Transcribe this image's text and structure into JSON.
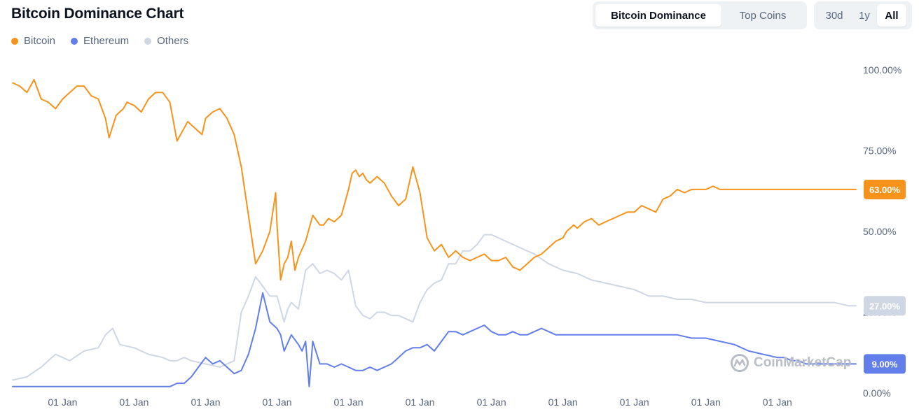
{
  "header": {
    "title": "Bitcoin Dominance Chart",
    "view_tabs": [
      "Bitcoin Dominance",
      "Top Coins"
    ],
    "active_view": "Bitcoin Dominance",
    "range_tabs": [
      "30d",
      "1y",
      "All"
    ],
    "active_range": "All"
  },
  "watermark": {
    "text": "CoinMarketCap",
    "icon": "coinmarketcap-logo-icon"
  },
  "chart_data": {
    "type": "line",
    "title": "Bitcoin Dominance Chart",
    "xlabel": "",
    "ylabel": "",
    "ylim": [
      0,
      100
    ],
    "y_ticks": [
      "100.00%",
      "75.00%",
      "50.00%",
      "25.00%",
      "0.00%"
    ],
    "x_tick_labels": [
      "01 Jan",
      "01 Jan",
      "01 Jan",
      "01 Jan",
      "01 Jan",
      "01 Jan",
      "01 Jan",
      "01 Jan",
      "01 Jan",
      "01 Jan",
      "01 Jan"
    ],
    "x_range": [
      2013.3,
      2025.1
    ],
    "x_ticks": [
      2014,
      2015,
      2016,
      2017,
      2018,
      2019,
      2020,
      2021,
      2022,
      2023,
      2024
    ],
    "grid": false,
    "legend_position": "top-left",
    "series": [
      {
        "name": "Bitcoin",
        "color": "#f7931a",
        "end_label": "63.00%",
        "x": [
          2013.3,
          2013.4,
          2013.5,
          2013.55,
          2013.6,
          2013.7,
          2013.8,
          2013.9,
          2014.0,
          2014.1,
          2014.2,
          2014.3,
          2014.4,
          2014.5,
          2014.6,
          2014.65,
          2014.75,
          2014.85,
          2014.9,
          2015.0,
          2015.1,
          2015.2,
          2015.3,
          2015.4,
          2015.5,
          2015.6,
          2015.7,
          2015.75,
          2015.85,
          2015.95,
          2016.0,
          2016.1,
          2016.2,
          2016.3,
          2016.4,
          2016.5,
          2016.6,
          2016.7,
          2016.8,
          2016.9,
          2016.98,
          2017.0,
          2017.05,
          2017.1,
          2017.15,
          2017.2,
          2017.25,
          2017.3,
          2017.4,
          2017.5,
          2017.6,
          2017.65,
          2017.72,
          2017.8,
          2017.9,
          2017.95,
          2018.0,
          2018.05,
          2018.1,
          2018.15,
          2018.2,
          2018.25,
          2018.3,
          2018.4,
          2018.5,
          2018.6,
          2018.7,
          2018.8,
          2018.9,
          2019.0,
          2019.1,
          2019.2,
          2019.3,
          2019.4,
          2019.5,
          2019.6,
          2019.7,
          2019.8,
          2019.9,
          2020.0,
          2020.1,
          2020.2,
          2020.3,
          2020.4,
          2020.5,
          2020.6,
          2020.7,
          2020.8,
          2020.9,
          2021.0,
          2021.05,
          2021.1,
          2021.15,
          2021.2,
          2021.3,
          2021.4,
          2021.5,
          2021.6,
          2021.7,
          2021.8,
          2021.9,
          2022.0,
          2022.1,
          2022.2,
          2022.3,
          2022.4,
          2022.5,
          2022.6,
          2022.7,
          2022.8,
          2022.9,
          2023.0,
          2023.1,
          2023.2,
          2023.3,
          2023.4,
          2023.5,
          2023.6,
          2023.7,
          2023.8,
          2023.9,
          2024.0,
          2024.1,
          2024.2,
          2024.3,
          2024.4,
          2024.5,
          2024.6,
          2024.7,
          2024.8,
          2024.9,
          2025.0,
          2025.1
        ],
        "values": [
          96,
          95,
          93,
          95,
          97,
          91,
          90,
          88,
          91,
          93,
          95,
          95,
          92,
          91,
          85,
          79,
          86,
          88,
          90,
          89,
          87,
          91,
          93,
          93,
          90,
          78,
          82,
          84,
          82,
          80,
          85,
          87,
          88,
          85,
          80,
          70,
          55,
          40,
          44,
          50,
          62,
          52,
          35,
          40,
          42,
          47,
          38,
          42,
          47,
          55,
          52,
          52,
          54,
          53,
          55,
          59,
          63,
          68,
          69,
          67,
          68,
          66,
          65,
          67,
          65,
          61,
          58,
          60,
          70,
          62,
          48,
          44,
          46,
          42,
          44,
          42,
          41,
          42,
          43,
          41,
          41,
          42,
          39,
          38,
          40,
          42,
          43,
          45,
          47,
          48,
          50,
          51,
          52,
          51,
          53,
          54,
          52,
          53,
          54,
          55,
          56,
          56,
          58,
          57,
          56,
          60,
          61,
          63,
          62,
          63,
          63,
          63,
          64,
          63,
          63,
          63,
          63,
          63,
          63,
          63,
          63,
          63,
          63,
          63,
          63,
          63,
          63,
          63,
          63,
          63,
          63,
          63,
          63
        ]
      },
      {
        "name": "Ethereum",
        "color": "#627eea",
        "end_label": "9.00%",
        "x": [
          2013.3,
          2015.5,
          2015.6,
          2015.7,
          2015.8,
          2015.9,
          2016.0,
          2016.1,
          2016.2,
          2016.3,
          2016.4,
          2016.5,
          2016.6,
          2016.7,
          2016.8,
          2016.9,
          2017.0,
          2017.05,
          2017.1,
          2017.2,
          2017.3,
          2017.35,
          2017.4,
          2017.45,
          2017.5,
          2017.6,
          2017.7,
          2017.8,
          2017.9,
          2018.0,
          2018.1,
          2018.2,
          2018.3,
          2018.4,
          2018.5,
          2018.6,
          2018.7,
          2018.8,
          2018.9,
          2019.0,
          2019.1,
          2019.2,
          2019.3,
          2019.4,
          2019.5,
          2019.6,
          2019.7,
          2019.8,
          2019.9,
          2020.0,
          2020.1,
          2020.2,
          2020.3,
          2020.4,
          2020.5,
          2020.6,
          2020.7,
          2020.8,
          2020.9,
          2021.0,
          2021.2,
          2021.4,
          2021.6,
          2021.8,
          2022.0,
          2022.2,
          2022.4,
          2022.6,
          2022.8,
          2023.0,
          2023.2,
          2023.4,
          2023.6,
          2023.8,
          2024.0,
          2024.1,
          2024.2,
          2024.3,
          2024.4,
          2024.5,
          2024.6,
          2024.7,
          2024.8,
          2024.9,
          2025.0,
          2025.1
        ],
        "values": [
          2,
          2,
          3,
          3,
          5,
          8,
          11,
          9,
          10,
          8,
          6,
          7,
          12,
          20,
          31,
          22,
          20,
          18,
          13,
          18,
          15,
          13,
          16,
          2,
          16,
          9,
          9,
          8,
          9,
          8,
          7,
          7,
          8,
          7,
          8,
          9,
          11,
          13,
          14,
          14,
          15,
          13,
          16,
          19,
          19,
          18,
          19,
          20,
          21,
          19,
          18,
          18,
          19,
          18,
          18,
          19,
          20,
          19,
          18,
          18,
          18,
          18,
          18,
          18,
          18,
          18,
          18,
          18,
          17,
          17,
          16,
          15,
          13,
          12,
          11,
          11,
          10,
          10,
          9,
          9,
          9,
          9,
          9,
          9,
          9,
          9
        ]
      },
      {
        "name": "Others",
        "color": "#cfd6e4",
        "end_label": "27.00%",
        "x": [
          2013.3,
          2013.5,
          2013.7,
          2013.9,
          2014.1,
          2014.3,
          2014.5,
          2014.6,
          2014.7,
          2014.8,
          2015.0,
          2015.2,
          2015.4,
          2015.5,
          2015.6,
          2015.7,
          2015.8,
          2016.0,
          2016.2,
          2016.4,
          2016.5,
          2016.6,
          2016.7,
          2016.8,
          2016.9,
          2017.0,
          2017.1,
          2017.15,
          2017.2,
          2017.3,
          2017.4,
          2017.5,
          2017.6,
          2017.7,
          2017.8,
          2017.9,
          2018.0,
          2018.1,
          2018.2,
          2018.3,
          2018.4,
          2018.5,
          2018.6,
          2018.7,
          2018.8,
          2018.9,
          2019.0,
          2019.1,
          2019.2,
          2019.3,
          2019.4,
          2019.5,
          2019.6,
          2019.7,
          2019.8,
          2019.9,
          2020.0,
          2020.2,
          2020.4,
          2020.6,
          2020.8,
          2021.0,
          2021.2,
          2021.4,
          2021.6,
          2021.8,
          2022.0,
          2022.2,
          2022.4,
          2022.6,
          2022.8,
          2023.0,
          2023.2,
          2023.4,
          2023.6,
          2023.8,
          2024.0,
          2024.2,
          2024.4,
          2024.6,
          2024.8,
          2025.0,
          2025.1
        ],
        "values": [
          4,
          5,
          8,
          12,
          10,
          13,
          14,
          18,
          20,
          15,
          14,
          12,
          11,
          10,
          10,
          11,
          10,
          9,
          8,
          10,
          25,
          30,
          36,
          33,
          30,
          30,
          22,
          26,
          28,
          26,
          38,
          40,
          37,
          38,
          37,
          35,
          38,
          27,
          24,
          23,
          25,
          25,
          24,
          24,
          23,
          22,
          28,
          32,
          34,
          35,
          40,
          40,
          44,
          44,
          46,
          49,
          49,
          47,
          45,
          43,
          40,
          38,
          37,
          35,
          34,
          33,
          32,
          30,
          30,
          29,
          29,
          28,
          28,
          28,
          28,
          28,
          28,
          28,
          28,
          28,
          28,
          27,
          27
        ]
      }
    ]
  }
}
